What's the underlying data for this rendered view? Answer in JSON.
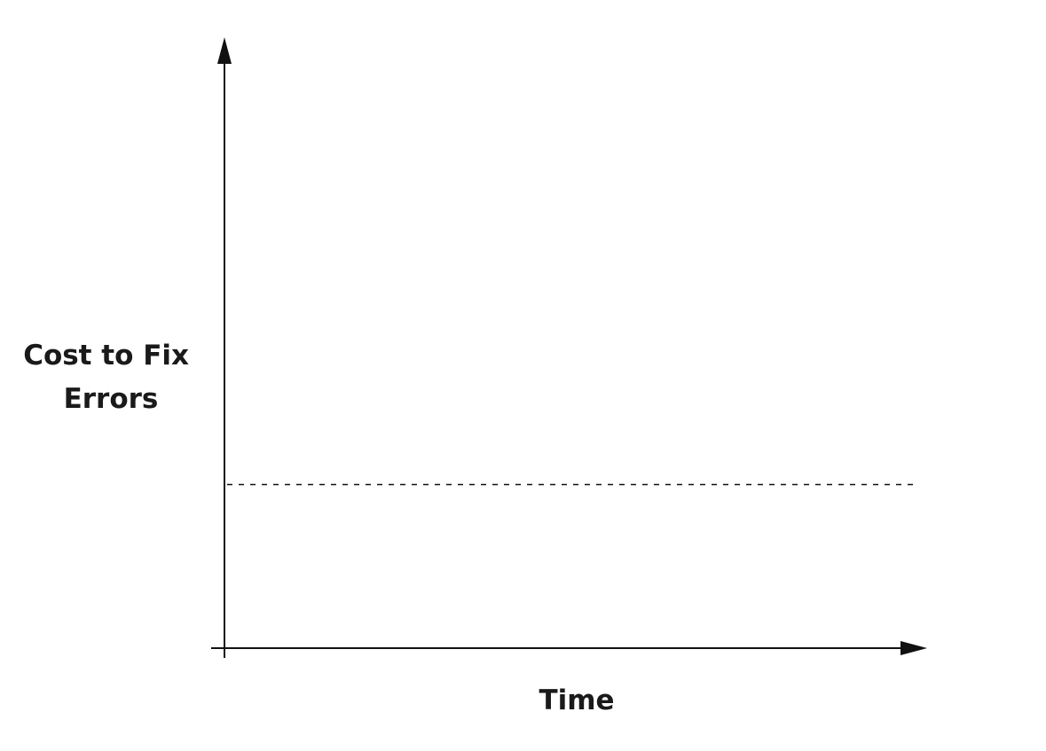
{
  "chart_data": {
    "type": "line",
    "title": "",
    "xlabel": "Time",
    "ylabel_lines": [
      "Cost to Fix",
      "Errors"
    ],
    "grid": false,
    "legend": "none",
    "axis_ticks": false,
    "colors": {
      "background": "#ffffff",
      "axis": "#111111",
      "line": "#111111",
      "text": "#1a1a1a"
    },
    "xlim": [
      0,
      100
    ],
    "ylim": [
      0,
      100
    ],
    "series": [
      {
        "style": "dashed",
        "x": [
          0,
          100
        ],
        "y": [
          27.5,
          27.5
        ]
      }
    ]
  }
}
